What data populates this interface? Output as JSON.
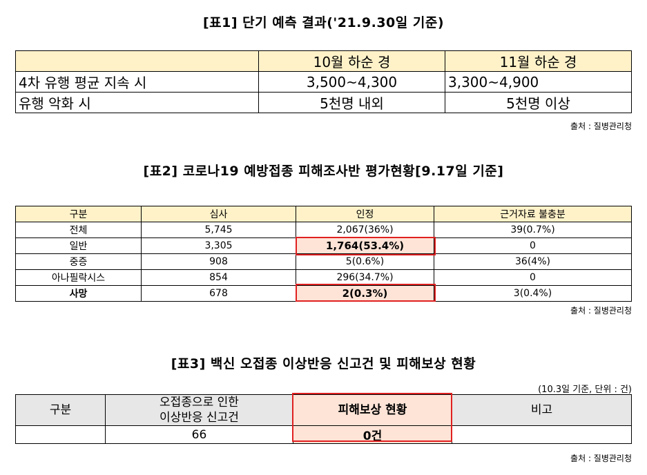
{
  "table1": {
    "title": "[표1] 단기 예측 결과('21.9.30일 기준)",
    "headers": [
      "",
      "10월 하순 경",
      "11월 하순 경"
    ],
    "rows": [
      [
        "4차 유행 평균 지속 시",
        "3,500~4,300",
        "3,300~4,900"
      ],
      [
        "유행 악화 시",
        "5천명 내외",
        "5천명 이상"
      ]
    ],
    "source": "출처 : 질병관리청"
  },
  "table2": {
    "title": "[표2] 코로나19 예방접종 피해조사반 평가현황[9.17일 기준]",
    "headers": [
      "구분",
      "심사",
      "인정",
      "근거자료 불충분"
    ],
    "rows": [
      [
        "전체",
        "5,745",
        "2,067(36%)",
        "39(0.7%)"
      ],
      [
        "일반",
        "3,305",
        "1,764(53.4%)",
        "0"
      ],
      [
        "중증",
        "908",
        "5(0.6%)",
        "36(4%)"
      ],
      [
        "아나필락시스",
        "854",
        "296(34.7%)",
        "0"
      ],
      [
        "사망",
        "678",
        "2(0.3%)",
        "3(0.4%)"
      ]
    ],
    "source": "출처 : 질병관리청"
  },
  "table3": {
    "title": "[표3] 백신 오접종 이상반응 신고건 및 피해보상 현황",
    "note": "(10.3일 기준, 단위 : 건)",
    "headers": [
      "구분",
      "오접종으로 인한\n이상반응 신고건",
      "피해보상 현황",
      "비고"
    ],
    "header2_line1": "오접종으로 인한",
    "header2_line2": "이상반응 신고건",
    "row": [
      "",
      "66",
      "0건",
      ""
    ],
    "source": "출처 : 질병관리청"
  },
  "colors": {
    "header_yellow": "#fff2c9",
    "highlight": "#fde4d7",
    "border_red": "#e02020",
    "header_gray": "#e7e7e7"
  }
}
